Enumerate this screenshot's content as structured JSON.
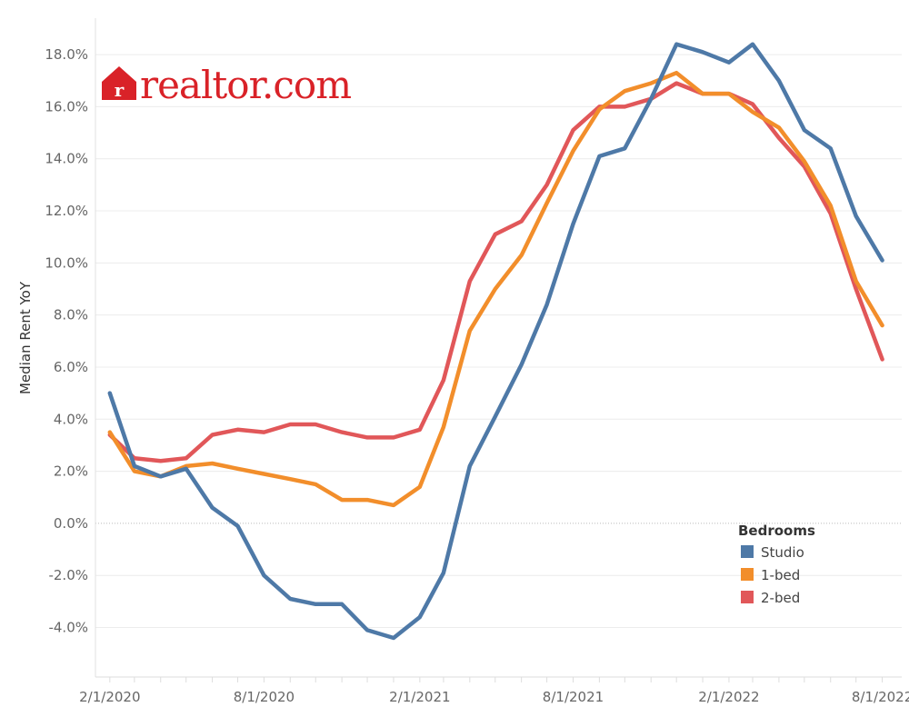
{
  "brand": {
    "name": "realtor.com",
    "color": "#d92228"
  },
  "chart_data": {
    "type": "line",
    "title": "",
    "xlabel": "",
    "ylabel": "Median Rent YoY",
    "ylim": [
      -5.9,
      19.4
    ],
    "yticks": [
      -4,
      -2,
      0,
      2,
      4,
      6,
      8,
      10,
      12,
      14,
      16,
      18
    ],
    "ytick_labels": [
      "-4.0%",
      "-2.0%",
      "0.0%",
      "2.0%",
      "4.0%",
      "6.0%",
      "8.0%",
      "10.0%",
      "12.0%",
      "14.0%",
      "16.0%",
      "18.0%"
    ],
    "x": [
      "2020-02-01",
      "2020-03-01",
      "2020-04-01",
      "2020-05-01",
      "2020-06-01",
      "2020-07-01",
      "2020-08-01",
      "2020-09-01",
      "2020-10-01",
      "2020-11-01",
      "2020-12-01",
      "2021-01-01",
      "2021-02-01",
      "2021-03-01",
      "2021-04-01",
      "2021-05-01",
      "2021-06-01",
      "2021-07-01",
      "2021-08-01",
      "2021-09-01",
      "2021-10-01",
      "2021-11-01",
      "2021-12-01",
      "2022-01-01",
      "2022-02-01",
      "2022-03-01",
      "2022-04-01",
      "2022-05-01",
      "2022-06-01",
      "2022-07-01",
      "2022-08-01"
    ],
    "xlim": [
      "2020-01-15",
      "2022-08-24"
    ],
    "xtick_labels": [
      "2/1/2020",
      "8/1/2020",
      "2/1/2021",
      "8/1/2021",
      "2/1/2022",
      "8/1/2022"
    ],
    "xtick_dates": [
      "2020-02-01",
      "2020-08-01",
      "2021-02-01",
      "2021-08-01",
      "2022-02-01",
      "2022-08-01"
    ],
    "grid": true,
    "zero_line": true,
    "legend": {
      "title": "Bedrooms",
      "position": "right"
    },
    "series": [
      {
        "name": "Studio",
        "color": "#4e79a7",
        "values": [
          5.0,
          2.2,
          1.8,
          2.1,
          0.6,
          -0.1,
          -2.0,
          -2.9,
          -3.1,
          -3.1,
          -4.1,
          -4.4,
          -3.6,
          -1.9,
          2.2,
          4.1,
          6.1,
          8.4,
          11.5,
          14.1,
          14.4,
          16.3,
          18.4,
          18.1,
          17.7,
          18.4,
          17.0,
          15.1,
          14.4,
          11.8,
          10.1
        ]
      },
      {
        "name": "1-bed",
        "color": "#f28e2b",
        "values": [
          3.5,
          2.0,
          1.8,
          2.2,
          2.3,
          2.1,
          1.9,
          1.7,
          1.5,
          0.9,
          0.9,
          0.7,
          1.4,
          3.7,
          7.4,
          9.0,
          10.3,
          12.3,
          14.3,
          15.9,
          16.6,
          16.9,
          17.3,
          16.5,
          16.5,
          15.8,
          15.2,
          13.9,
          12.2,
          9.3,
          7.6
        ]
      },
      {
        "name": "2-bed",
        "color": "#e15759",
        "values": [
          3.4,
          2.5,
          2.4,
          2.5,
          3.4,
          3.6,
          3.5,
          3.8,
          3.8,
          3.5,
          3.3,
          3.3,
          3.6,
          5.5,
          9.3,
          11.1,
          11.6,
          13.0,
          15.1,
          16.0,
          16.0,
          16.3,
          16.9,
          16.5,
          16.5,
          16.1,
          14.8,
          13.7,
          11.9,
          9.0,
          6.3
        ]
      }
    ]
  }
}
